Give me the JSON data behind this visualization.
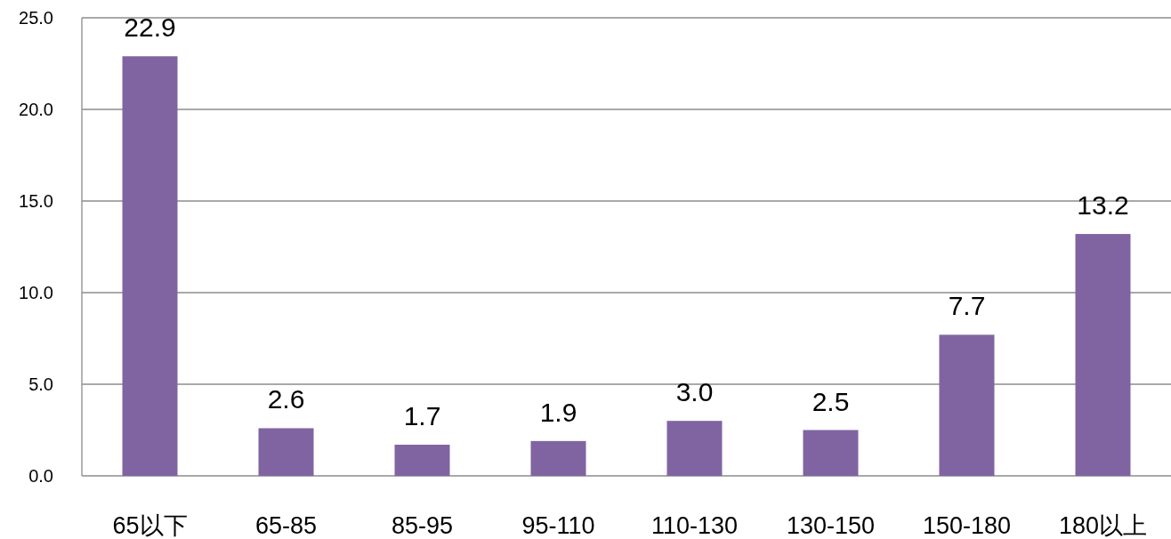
{
  "chart_data": {
    "type": "bar",
    "categories": [
      "65以下",
      "65-85",
      "85-95",
      "95-110",
      "110-130",
      "130-150",
      "150-180",
      "180以上"
    ],
    "values": [
      22.9,
      2.6,
      1.7,
      1.9,
      3.0,
      2.5,
      7.7,
      13.2
    ],
    "value_labels": [
      "22.9",
      "2.6",
      "1.7",
      "1.9",
      "3.0",
      "2.5",
      "7.7",
      "13.2"
    ],
    "color": "#8064a2",
    "ylim": [
      0,
      25
    ],
    "yticks": [
      {
        "value": 0,
        "label": "0.0"
      },
      {
        "value": 5,
        "label": "5.0"
      },
      {
        "value": 10,
        "label": "10.0"
      },
      {
        "value": 15,
        "label": "15.0"
      },
      {
        "value": 20,
        "label": "20.0"
      },
      {
        "value": 25,
        "label": "25.0"
      }
    ],
    "grid": "y"
  }
}
